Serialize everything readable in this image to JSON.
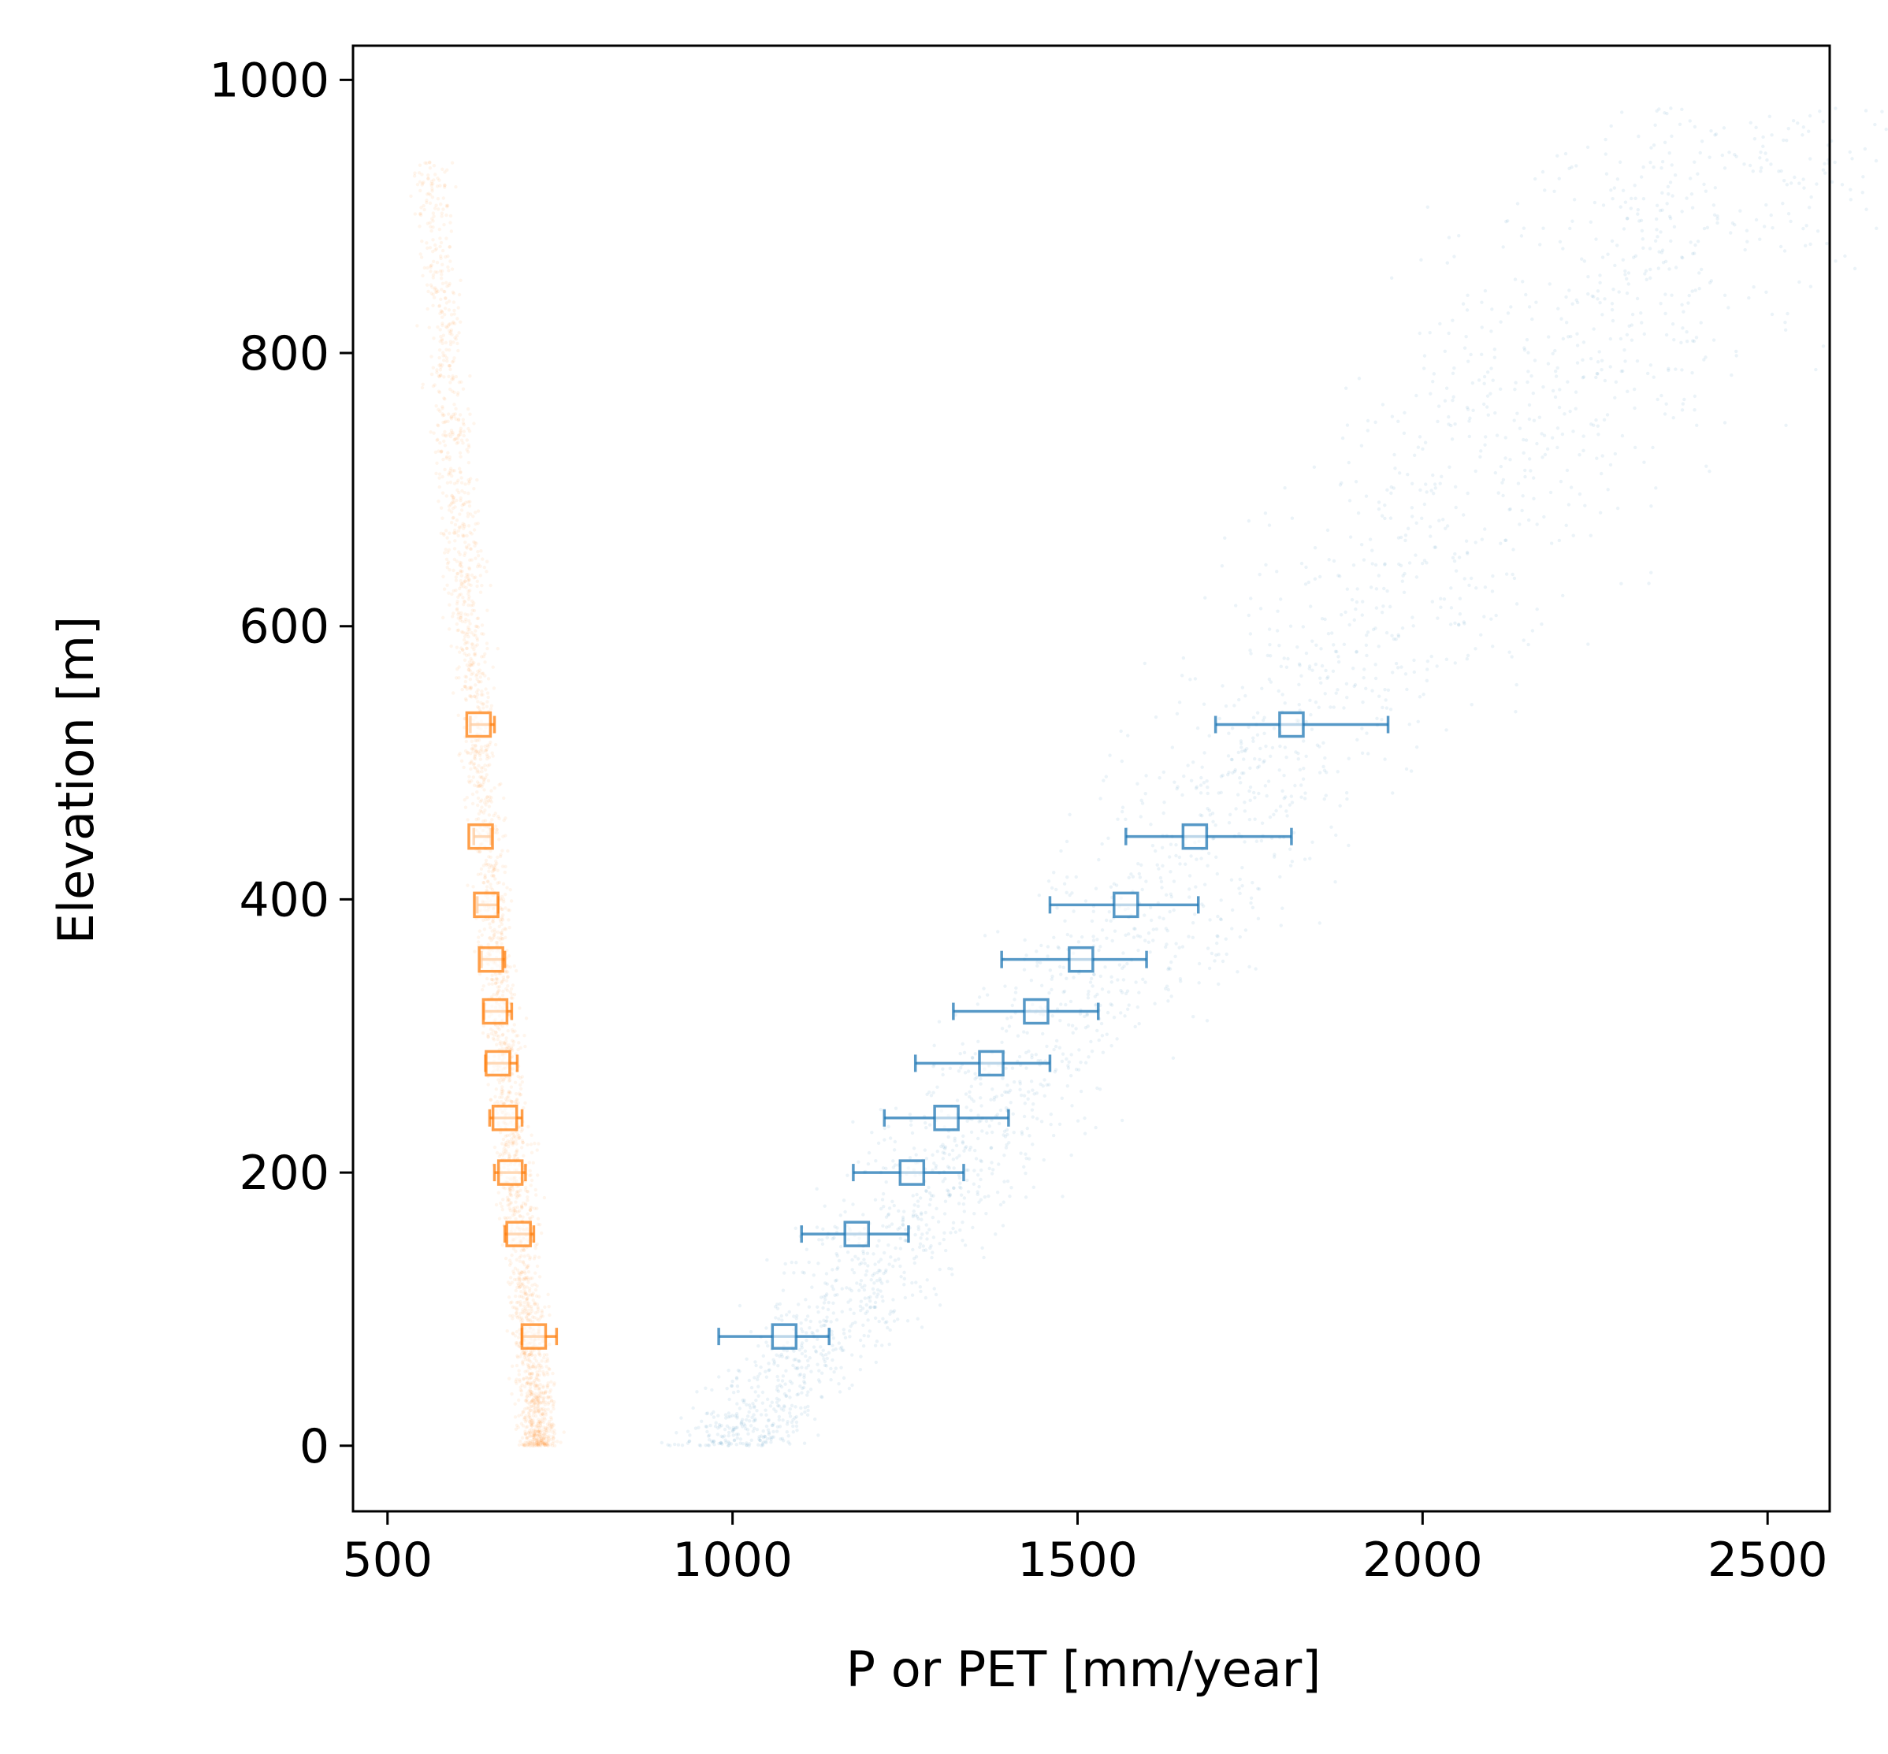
{
  "chart_data": {
    "type": "scatter",
    "xlabel": "P or PET [mm/year]",
    "ylabel": "Elevation [m]",
    "xlim": [
      450,
      2590
    ],
    "ylim": [
      -48,
      1025
    ],
    "xticks": [
      500,
      1000,
      1500,
      2000,
      2500
    ],
    "xtick_labels": [
      "500",
      "1000",
      "1500",
      "2000",
      "2500"
    ],
    "yticks": [
      0,
      200,
      400,
      600,
      800,
      1000
    ],
    "ytick_labels": [
      "0",
      "200",
      "400",
      "600",
      "800",
      "1000"
    ],
    "grid": false,
    "legend": "none",
    "colors": {
      "p_series": "#1f77b4",
      "pet_series": "#ff7f0e"
    },
    "series": [
      {
        "color": "#1f77b4",
        "marker": "open-square-with-horizontal-errorbar",
        "points": [
          {
            "y": 80,
            "x": 1075,
            "xerr_low": 980,
            "xerr_high": 1140
          },
          {
            "y": 155,
            "x": 1180,
            "xerr_low": 1100,
            "xerr_high": 1255
          },
          {
            "y": 200,
            "x": 1260,
            "xerr_low": 1175,
            "xerr_high": 1335
          },
          {
            "y": 240,
            "x": 1310,
            "xerr_low": 1220,
            "xerr_high": 1400
          },
          {
            "y": 280,
            "x": 1375,
            "xerr_low": 1265,
            "xerr_high": 1460
          },
          {
            "y": 318,
            "x": 1440,
            "xerr_low": 1320,
            "xerr_high": 1530
          },
          {
            "y": 356,
            "x": 1505,
            "xerr_low": 1390,
            "xerr_high": 1600
          },
          {
            "y": 396,
            "x": 1570,
            "xerr_low": 1460,
            "xerr_high": 1675
          },
          {
            "y": 446,
            "x": 1670,
            "xerr_low": 1570,
            "xerr_high": 1810
          },
          {
            "y": 528,
            "x": 1810,
            "xerr_low": 1700,
            "xerr_high": 1950
          }
        ]
      },
      {
        "color": "#ff7f0e",
        "marker": "open-square-with-horizontal-errorbar",
        "points": [
          {
            "y": 80,
            "x": 712,
            "xerr_low": 695,
            "xerr_high": 745
          },
          {
            "y": 155,
            "x": 690,
            "xerr_low": 670,
            "xerr_high": 712
          },
          {
            "y": 200,
            "x": 678,
            "xerr_low": 655,
            "xerr_high": 700
          },
          {
            "y": 240,
            "x": 670,
            "xerr_low": 648,
            "xerr_high": 695
          },
          {
            "y": 280,
            "x": 660,
            "xerr_low": 642,
            "xerr_high": 688
          },
          {
            "y": 318,
            "x": 656,
            "xerr_low": 640,
            "xerr_high": 680
          },
          {
            "y": 356,
            "x": 650,
            "xerr_low": 636,
            "xerr_high": 670
          },
          {
            "y": 396,
            "x": 643,
            "xerr_low": 630,
            "xerr_high": 660
          },
          {
            "y": 446,
            "x": 635,
            "xerr_low": 625,
            "xerr_high": 650
          },
          {
            "y": 528,
            "x": 632,
            "xerr_low": 620,
            "xerr_high": 655
          }
        ]
      }
    ]
  }
}
